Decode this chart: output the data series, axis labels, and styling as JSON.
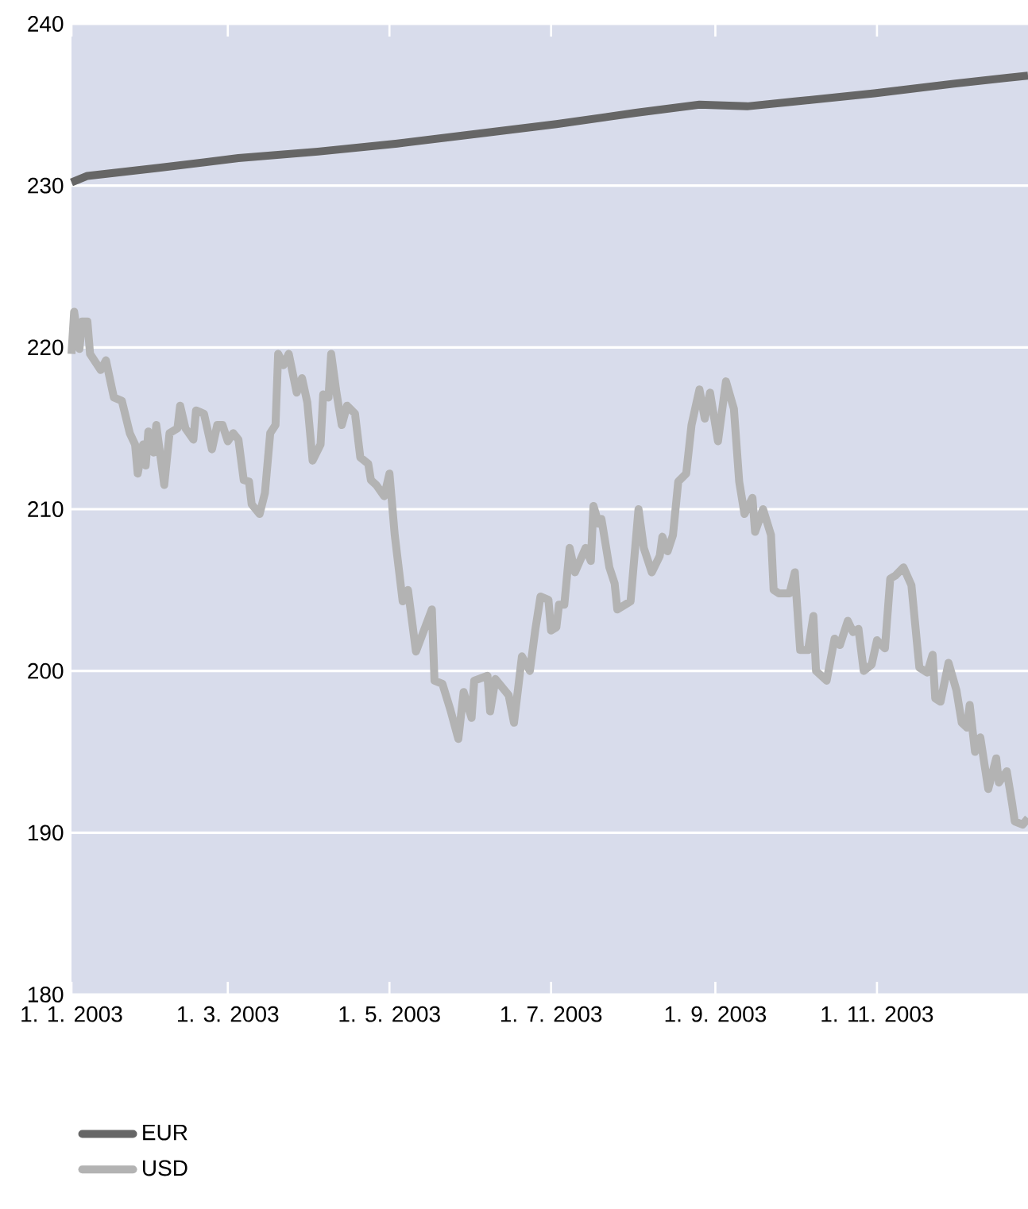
{
  "chart_data": {
    "type": "line",
    "xlim": [
      "2003-01-01",
      "2003-12-28"
    ],
    "xticks": [
      {
        "value": "2003-01-01",
        "label": "1. 1. 2003"
      },
      {
        "value": "2003-03-01",
        "label": "1. 3. 2003"
      },
      {
        "value": "2003-05-01",
        "label": "1. 5. 2003"
      },
      {
        "value": "2003-07-01",
        "label": "1. 7. 2003"
      },
      {
        "value": "2003-09-01",
        "label": "1. 9. 2003"
      },
      {
        "value": "2003-11-01",
        "label": "1. 11. 2003"
      }
    ],
    "ylim": [
      180,
      240
    ],
    "yticks": [
      180,
      190,
      200,
      210,
      220,
      230,
      240
    ],
    "grid": "y",
    "legend": "bottom left",
    "series": [
      {
        "name": "EUR",
        "color": "#666666",
        "x": [
          "2003-01-01",
          "2003-01-07",
          "2003-02-03",
          "2003-03-05",
          "2003-04-04",
          "2003-05-04",
          "2003-06-03",
          "2003-07-03",
          "2003-08-02",
          "2003-08-26",
          "2003-09-13",
          "2003-10-01",
          "2003-10-31",
          "2003-11-30",
          "2003-12-28"
        ],
        "values": [
          230.2,
          230.6,
          231.1,
          231.7,
          232.1,
          232.6,
          233.2,
          233.8,
          234.5,
          235.0,
          234.9,
          235.2,
          235.7,
          236.3,
          236.8
        ]
      },
      {
        "name": "USD",
        "color": "#b3b3b3",
        "x": [
          "2003-01-01",
          "2003-01-02",
          "2003-01-04",
          "2003-01-05",
          "2003-01-07",
          "2003-01-08",
          "2003-01-12",
          "2003-01-14",
          "2003-01-17",
          "2003-01-20",
          "2003-01-23",
          "2003-01-25",
          "2003-01-26",
          "2003-01-28",
          "2003-01-29",
          "2003-01-30",
          "2003-02-01",
          "2003-02-02",
          "2003-02-05",
          "2003-02-07",
          "2003-02-10",
          "2003-02-11",
          "2003-02-13",
          "2003-02-16",
          "2003-02-17",
          "2003-02-20",
          "2003-02-23",
          "2003-02-25",
          "2003-02-27",
          "2003-03-01",
          "2003-03-03",
          "2003-03-05",
          "2003-03-07",
          "2003-03-09",
          "2003-03-10",
          "2003-03-13",
          "2003-03-15",
          "2003-03-17",
          "2003-03-19",
          "2003-03-20",
          "2003-03-22",
          "2003-03-24",
          "2003-03-27",
          "2003-03-29",
          "2003-03-31",
          "2003-04-02",
          "2003-04-05",
          "2003-04-06",
          "2003-04-08",
          "2003-04-09",
          "2003-04-11",
          "2003-04-13",
          "2003-04-15",
          "2003-04-18",
          "2003-04-20",
          "2003-04-23",
          "2003-04-24",
          "2003-04-26",
          "2003-04-29",
          "2003-05-01",
          "2003-05-03",
          "2003-05-06",
          "2003-05-08",
          "2003-05-11",
          "2003-05-14",
          "2003-05-17",
          "2003-05-18",
          "2003-05-21",
          "2003-05-24",
          "2003-05-27",
          "2003-05-29",
          "2003-06-01",
          "2003-06-02",
          "2003-06-07",
          "2003-06-08",
          "2003-06-10",
          "2003-06-15",
          "2003-06-17",
          "2003-06-20",
          "2003-06-23",
          "2003-06-25",
          "2003-06-27",
          "2003-06-30",
          "2003-07-01",
          "2003-07-03",
          "2003-07-04",
          "2003-07-06",
          "2003-07-08",
          "2003-07-10",
          "2003-07-14",
          "2003-07-16",
          "2003-07-17",
          "2003-07-19",
          "2003-07-20",
          "2003-07-23",
          "2003-07-25",
          "2003-07-26",
          "2003-07-31",
          "2003-08-03",
          "2003-08-05",
          "2003-08-08",
          "2003-08-11",
          "2003-08-12",
          "2003-08-14",
          "2003-08-16",
          "2003-08-18",
          "2003-08-21",
          "2003-08-23",
          "2003-08-26",
          "2003-08-28",
          "2003-08-30",
          "2003-09-02",
          "2003-09-05",
          "2003-09-08",
          "2003-09-10",
          "2003-09-12",
          "2003-09-15",
          "2003-09-16",
          "2003-09-19",
          "2003-09-22",
          "2003-09-23",
          "2003-09-25",
          "2003-09-29",
          "2003-10-01",
          "2003-10-03",
          "2003-10-06",
          "2003-10-08",
          "2003-10-09",
          "2003-10-13",
          "2003-10-16",
          "2003-10-18",
          "2003-10-21",
          "2003-10-23",
          "2003-10-25",
          "2003-10-27",
          "2003-10-30",
          "2003-11-01",
          "2003-11-04",
          "2003-11-06",
          "2003-11-08",
          "2003-11-11",
          "2003-11-14",
          "2003-11-17",
          "2003-11-20",
          "2003-11-22",
          "2003-11-23",
          "2003-11-25",
          "2003-11-28",
          "2003-12-01",
          "2003-12-03",
          "2003-12-05",
          "2003-12-06",
          "2003-12-08",
          "2003-12-10",
          "2003-12-13",
          "2003-12-16",
          "2003-12-17",
          "2003-12-20",
          "2003-12-22",
          "2003-12-23",
          "2003-12-26",
          "2003-12-28"
        ],
        "values": [
          219.6,
          222.2,
          219.9,
          221.6,
          221.6,
          219.6,
          218.6,
          219.2,
          216.9,
          216.7,
          214.7,
          214.0,
          212.2,
          214.0,
          212.7,
          214.8,
          213.5,
          215.2,
          211.5,
          214.7,
          215.0,
          216.4,
          215.0,
          214.3,
          216.1,
          215.9,
          213.7,
          215.2,
          215.2,
          214.2,
          214.7,
          214.3,
          211.8,
          211.7,
          210.3,
          209.7,
          211.0,
          214.7,
          215.2,
          219.6,
          218.9,
          219.6,
          217.2,
          218.1,
          216.6,
          213.0,
          214.0,
          217.1,
          216.9,
          219.6,
          217.2,
          215.2,
          216.4,
          215.9,
          213.2,
          212.8,
          211.8,
          211.5,
          210.8,
          212.2,
          208.4,
          204.3,
          205.0,
          201.2,
          202.5,
          203.8,
          199.4,
          199.2,
          197.6,
          195.8,
          198.7,
          197.1,
          199.4,
          199.7,
          197.5,
          199.5,
          198.5,
          196.8,
          200.9,
          200.0,
          202.5,
          204.6,
          204.4,
          202.5,
          202.7,
          204.1,
          204.1,
          207.6,
          206.1,
          207.6,
          206.8,
          210.2,
          209.1,
          209.4,
          206.4,
          205.4,
          203.8,
          204.3,
          210.0,
          207.6,
          206.1,
          207.1,
          208.3,
          207.4,
          208.4,
          211.7,
          212.2,
          215.2,
          217.4,
          215.6,
          217.2,
          214.2,
          217.9,
          216.2,
          211.7,
          209.7,
          210.7,
          208.6,
          210.0,
          208.4,
          205.0,
          204.8,
          204.8,
          206.1,
          201.3,
          201.3,
          203.4,
          200.0,
          199.4,
          202.0,
          201.6,
          203.1,
          202.4,
          202.6,
          200.0,
          200.4,
          201.9,
          201.4,
          205.7,
          205.9,
          206.4,
          205.3,
          200.2,
          199.9,
          201.0,
          198.3,
          198.1,
          200.5,
          198.8,
          196.8,
          196.5,
          197.9,
          195.0,
          195.9,
          192.7,
          194.6,
          193.1,
          193.8,
          191.8,
          190.7,
          190.5,
          190.9
        ]
      }
    ]
  }
}
